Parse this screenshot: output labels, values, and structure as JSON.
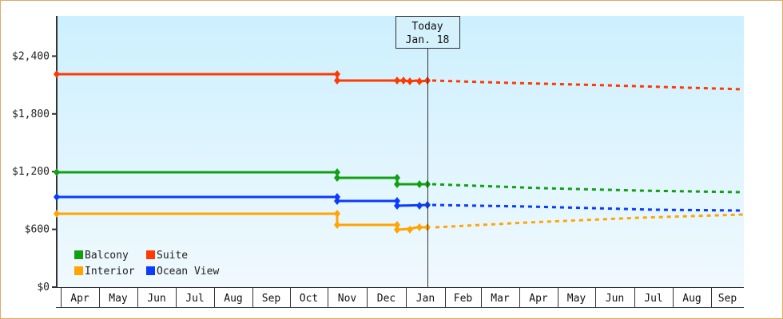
{
  "chart_data": {
    "type": "line",
    "title": "",
    "xlabel": "",
    "ylabel": "",
    "ylim": [
      0,
      2800
    ],
    "yticks": [
      "$0",
      "$600",
      "$1,200",
      "$1,800",
      "$2,400"
    ],
    "ytick_values": [
      0,
      600,
      1200,
      1800,
      2400
    ],
    "months": [
      "Apr",
      "May",
      "Jun",
      "Jul",
      "Aug",
      "Sep",
      "Oct",
      "Nov",
      "Dec",
      "Jan",
      "Feb",
      "Mar",
      "Apr",
      "May",
      "Jun",
      "Jul",
      "Aug",
      "Sep"
    ],
    "today_marker": {
      "line1": "Today",
      "line2": "Jan. 18"
    },
    "legend": [
      {
        "name": "Balcony",
        "color": "#11a011"
      },
      {
        "name": "Suite",
        "color": "#ff3a00"
      },
      {
        "name": "Interior",
        "color": "#ffa500"
      },
      {
        "name": "Ocean View",
        "color": "#0a3cff"
      }
    ],
    "legend_position": "lower-left inside plot",
    "grid": false,
    "series": [
      {
        "name": "Suite",
        "color": "#ff3a00",
        "historical": [
          [
            "Apr",
            2180
          ],
          [
            "Nov",
            2180
          ],
          [
            "Nov",
            2120
          ],
          [
            "Dec",
            2120
          ],
          [
            "Jan",
            2110
          ],
          [
            "Jan 18",
            2120
          ]
        ],
        "forecast": [
          [
            "Jan 18",
            2120
          ],
          [
            "Mar",
            2100
          ],
          [
            "Jun",
            2090
          ],
          [
            "Sep",
            2050
          ]
        ]
      },
      {
        "name": "Balcony",
        "color": "#11a011",
        "historical": [
          [
            "Apr",
            1190
          ],
          [
            "Nov",
            1190
          ],
          [
            "Nov",
            1130
          ],
          [
            "Dec",
            1130
          ],
          [
            "Dec",
            1070
          ],
          [
            "Jan 18",
            1070
          ]
        ],
        "forecast": [
          [
            "Jan 18",
            1070
          ],
          [
            "Apr",
            1050
          ],
          [
            "Jun",
            1030
          ],
          [
            "Sep",
            980
          ]
        ]
      },
      {
        "name": "Ocean View",
        "color": "#0a3cff",
        "historical": [
          [
            "Apr",
            940
          ],
          [
            "Nov",
            940
          ],
          [
            "Nov",
            900
          ],
          [
            "Dec",
            900
          ],
          [
            "Dec",
            850
          ],
          [
            "Jan 18",
            850
          ]
        ],
        "forecast": [
          [
            "Jan 18",
            850
          ],
          [
            "Apr",
            830
          ],
          [
            "Jul",
            810
          ],
          [
            "Sep",
            790
          ]
        ]
      },
      {
        "name": "Interior",
        "color": "#ffa500",
        "historical": [
          [
            "Apr",
            760
          ],
          [
            "Nov",
            760
          ],
          [
            "Nov",
            640
          ],
          [
            "Dec",
            640
          ],
          [
            "Dec",
            610
          ],
          [
            "Jan 18",
            620
          ]
        ],
        "forecast": [
          [
            "Jan 18",
            620
          ],
          [
            "Apr",
            670
          ],
          [
            "Jul",
            720
          ],
          [
            "Sep",
            760
          ]
        ]
      }
    ]
  }
}
